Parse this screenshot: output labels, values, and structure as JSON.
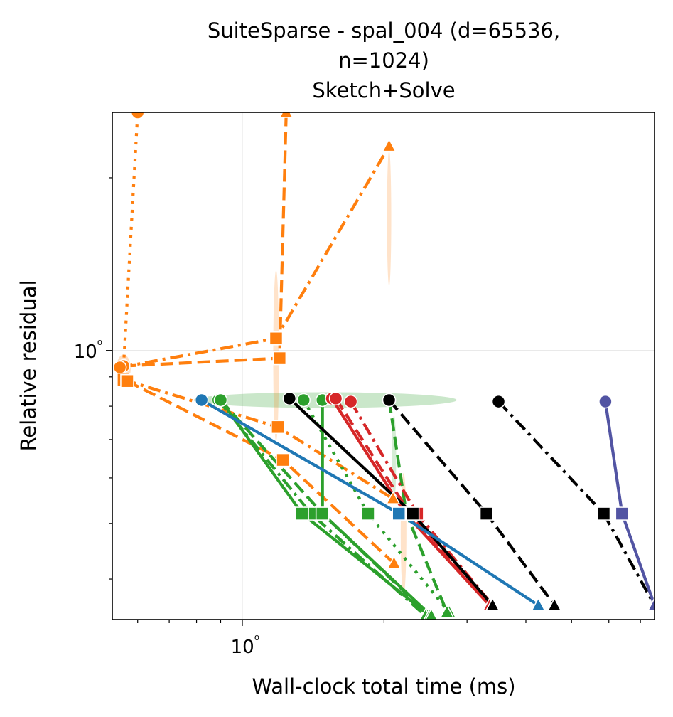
{
  "chart_data": {
    "type": "line",
    "title_lines": [
      "SuiteSparse - spal_004 (d=65536,",
      "n=1024)",
      "Sketch+Solve"
    ],
    "xlabel": "Wall-clock total time (ms)",
    "ylabel": "Relative residual",
    "xscale": "log",
    "yscale": "log",
    "xlim": [
      0.53,
      7.5
    ],
    "ylim": [
      0.34,
      2.6
    ],
    "x_tick_labels": [
      {
        "value": 1.0,
        "label": "10⁰"
      }
    ],
    "y_tick_labels": [
      {
        "value": 1.0,
        "label": "10⁰"
      }
    ],
    "grid": true,
    "legend": "none",
    "colors": {
      "orange": "#ff7f0e",
      "green": "#2ca02c",
      "red": "#d62728",
      "black": "#000000",
      "blue": "#1f77b4",
      "purple": "#5254a3"
    },
    "series": [
      {
        "color": "orange",
        "dash": "dot",
        "marker": "circle",
        "x": [
          0.56,
          0.6
        ],
        "y": [
          0.94,
          2.6
        ]
      },
      {
        "color": "orange",
        "dash": "dash",
        "marker": "circle",
        "x": [
          0.56,
          1.2,
          1.24
        ],
        "y": [
          0.94,
          0.97,
          2.6
        ]
      },
      {
        "color": "orange",
        "dash": "dashdot",
        "marker": "circle",
        "x": [
          0.55,
          1.18,
          2.05
        ],
        "y": [
          0.935,
          1.05,
          2.27
        ]
      },
      {
        "color": "orange",
        "dash": "dashdot",
        "marker": "square",
        "x": [
          0.56,
          1.19,
          2.09
        ],
        "y": [
          0.89,
          0.736,
          0.552
        ]
      },
      {
        "color": "orange",
        "dash": "dash",
        "marker": "square",
        "x": [
          0.57,
          1.22,
          2.1
        ],
        "y": [
          0.885,
          0.645,
          0.426
        ]
      },
      {
        "color": "green",
        "dash": "dashdot",
        "marker": "circle",
        "x": [
          0.89,
          1.4,
          2.45
        ],
        "y": [
          0.82,
          0.52,
          0.345
        ]
      },
      {
        "color": "green",
        "dash": "dash",
        "marker": "circle",
        "x": [
          0.9,
          1.48,
          2.5
        ],
        "y": [
          0.82,
          0.52,
          0.345
        ]
      },
      {
        "color": "green",
        "dash": "solid",
        "marker": "circle",
        "x": [
          0.9,
          1.34,
          2.5
        ],
        "y": [
          0.82,
          0.52,
          0.345
        ]
      },
      {
        "color": "green",
        "dash": "solid",
        "marker": "circle",
        "x": [
          1.48,
          1.48,
          2.52
        ],
        "y": [
          0.82,
          0.52,
          0.345
        ]
      },
      {
        "color": "green",
        "dash": "dotted",
        "marker": "circle",
        "x": [
          1.35,
          1.85,
          2.75
        ],
        "y": [
          0.82,
          0.52,
          0.35
        ]
      },
      {
        "color": "green",
        "dash": "dash",
        "marker": "circle",
        "x": [
          2.05,
          2.23,
          2.72
        ],
        "y": [
          0.82,
          0.52,
          0.35
        ]
      },
      {
        "color": "red",
        "dash": "solid",
        "marker": "circle",
        "x": [
          1.55,
          2.22,
          3.35
        ],
        "y": [
          0.825,
          0.52,
          0.36
        ]
      },
      {
        "color": "red",
        "dash": "dash",
        "marker": "circle",
        "x": [
          1.58,
          2.27,
          3.4
        ],
        "y": [
          0.825,
          0.52,
          0.36
        ]
      },
      {
        "color": "red",
        "dash": "dashdot",
        "marker": "circle",
        "x": [
          1.7,
          2.35,
          3.4
        ],
        "y": [
          0.815,
          0.52,
          0.36
        ]
      },
      {
        "color": "black",
        "dash": "solid",
        "marker": "circle",
        "x": [
          1.26,
          2.3,
          3.4
        ],
        "y": [
          0.825,
          0.52,
          0.36
        ]
      },
      {
        "color": "black",
        "dash": "dash",
        "marker": "circle",
        "x": [
          2.05,
          3.3,
          4.6
        ],
        "y": [
          0.82,
          0.52,
          0.36
        ]
      },
      {
        "color": "black",
        "dash": "dashdot",
        "marker": "circle",
        "x": [
          3.5,
          5.85,
          7.5
        ],
        "y": [
          0.815,
          0.52,
          0.36
        ]
      },
      {
        "color": "blue",
        "dash": "solid",
        "marker": "circle",
        "x": [
          0.82,
          2.15,
          4.25
        ],
        "y": [
          0.82,
          0.52,
          0.36
        ]
      },
      {
        "color": "purple",
        "dash": "solid",
        "marker": "circle",
        "x": [
          5.9,
          6.4,
          7.5
        ],
        "y": [
          0.815,
          0.52,
          0.36
        ]
      }
    ]
  }
}
